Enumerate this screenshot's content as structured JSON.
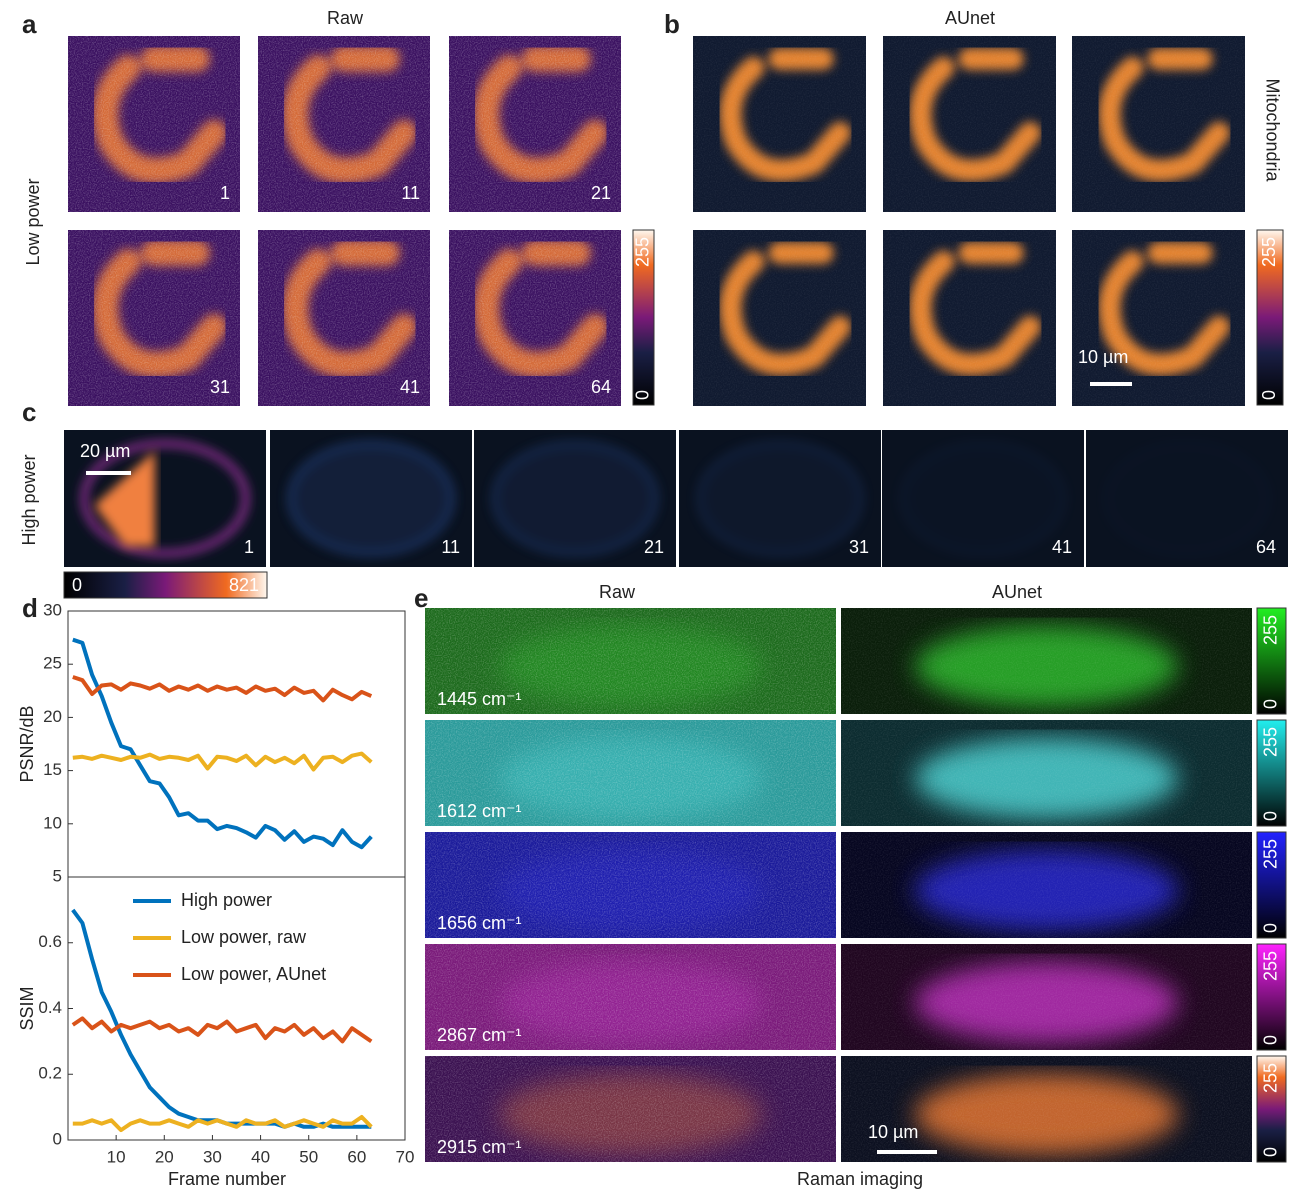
{
  "panel_labels": [
    "a",
    "b",
    "c",
    "d",
    "e"
  ],
  "panel_a": {
    "title": "Raw",
    "row_label": "Low power",
    "frames": [
      1,
      11,
      21,
      31,
      41,
      64
    ],
    "colorbar": {
      "ticks": [
        0,
        255
      ]
    }
  },
  "panel_b": {
    "title": "AUnet",
    "side_label": "Mitochondria",
    "scale_bar": "10 µm",
    "colorbar": {
      "ticks": [
        0,
        255
      ]
    }
  },
  "panel_c": {
    "row_label": "High power",
    "frames": [
      1,
      11,
      21,
      31,
      41,
      64
    ],
    "scale_bar": "20 µm",
    "colorbar": {
      "ticks": [
        0,
        821
      ]
    }
  },
  "panel_e": {
    "columns": [
      "Raw",
      "AUnet"
    ],
    "rows": [
      {
        "label": "1445 cm⁻¹",
        "colorbar_ticks": [
          0,
          255
        ]
      },
      {
        "label": "1612 cm⁻¹",
        "colorbar_ticks": [
          0,
          255
        ]
      },
      {
        "label": "1656 cm⁻¹",
        "colorbar_ticks": [
          0,
          255
        ]
      },
      {
        "label": "2867 cm⁻¹",
        "colorbar_ticks": [
          0,
          255
        ]
      },
      {
        "label": "2915 cm⁻¹",
        "colorbar_ticks": [
          0,
          255
        ]
      }
    ],
    "scale_bar": "10 µm",
    "x_label": "Raman imaging"
  },
  "chart_data": [
    {
      "type": "line",
      "y_label": "PSNR/dB",
      "xlim": [
        0,
        70
      ],
      "ylim": [
        5,
        30
      ],
      "yticks": [
        5,
        10,
        15,
        20,
        25,
        30
      ],
      "x": [
        1,
        3,
        5,
        7,
        9,
        11,
        13,
        15,
        17,
        19,
        21,
        23,
        25,
        27,
        29,
        31,
        33,
        35,
        37,
        39,
        41,
        43,
        45,
        47,
        49,
        51,
        53,
        55,
        57,
        59,
        61,
        63
      ],
      "series": [
        {
          "color": "#0072bd",
          "values": [
            27.3,
            27.0,
            24.0,
            22.0,
            19.5,
            17.3,
            17.0,
            15.5,
            14.0,
            13.8,
            12.5,
            10.8,
            11.0,
            10.3,
            10.3,
            9.5,
            9.8,
            9.6,
            9.2,
            8.7,
            9.8,
            9.4,
            8.5,
            9.3,
            8.3,
            8.8,
            8.6,
            8.0,
            9.4,
            8.3,
            7.8,
            8.8
          ]
        },
        {
          "color": "#edb120",
          "values": [
            16.2,
            16.3,
            16.1,
            16.4,
            16.2,
            16.0,
            16.3,
            16.2,
            16.5,
            16.1,
            16.3,
            16.2,
            16.0,
            16.4,
            15.2,
            16.3,
            16.2,
            15.9,
            16.4,
            15.5,
            16.3,
            15.8,
            16.2,
            15.7,
            16.4,
            15.1,
            16.2,
            16.3,
            15.8,
            16.4,
            16.6,
            15.8
          ]
        },
        {
          "color": "#d95319",
          "values": [
            23.8,
            23.5,
            22.2,
            23.0,
            23.1,
            22.6,
            23.2,
            23.0,
            22.7,
            23.1,
            22.5,
            22.9,
            22.6,
            23.0,
            22.5,
            22.9,
            22.6,
            22.8,
            22.3,
            22.9,
            22.5,
            22.7,
            22.1,
            22.8,
            22.3,
            22.5,
            21.6,
            22.6,
            22.1,
            21.7,
            22.4,
            22.0
          ]
        }
      ]
    },
    {
      "type": "line",
      "x_label": "Frame number",
      "y_label": "SSIM",
      "xlim": [
        0,
        70
      ],
      "ylim": [
        0,
        0.8
      ],
      "xticks": [
        10,
        20,
        30,
        40,
        50,
        60,
        70
      ],
      "yticks": [
        0,
        0.2,
        0.4,
        0.6
      ],
      "legend": "upper left",
      "x": [
        1,
        3,
        5,
        7,
        9,
        11,
        13,
        15,
        17,
        19,
        21,
        23,
        25,
        27,
        29,
        31,
        33,
        35,
        37,
        39,
        41,
        43,
        45,
        47,
        49,
        51,
        53,
        55,
        57,
        59,
        61,
        63
      ],
      "series": [
        {
          "name": "High power",
          "color": "#0072bd",
          "values": [
            0.7,
            0.66,
            0.55,
            0.45,
            0.39,
            0.32,
            0.26,
            0.21,
            0.16,
            0.13,
            0.1,
            0.08,
            0.07,
            0.06,
            0.06,
            0.06,
            0.05,
            0.05,
            0.05,
            0.05,
            0.05,
            0.05,
            0.04,
            0.05,
            0.04,
            0.04,
            0.05,
            0.04,
            0.04,
            0.04,
            0.04,
            0.04
          ]
        },
        {
          "name": "Low power, raw",
          "color": "#edb120",
          "values": [
            0.05,
            0.05,
            0.06,
            0.05,
            0.06,
            0.03,
            0.05,
            0.06,
            0.05,
            0.05,
            0.06,
            0.05,
            0.04,
            0.06,
            0.05,
            0.06,
            0.05,
            0.04,
            0.06,
            0.05,
            0.05,
            0.06,
            0.04,
            0.05,
            0.06,
            0.05,
            0.04,
            0.06,
            0.05,
            0.05,
            0.07,
            0.04
          ]
        },
        {
          "name": "Low power, AUnet",
          "color": "#d95319",
          "values": [
            0.35,
            0.37,
            0.34,
            0.36,
            0.33,
            0.35,
            0.34,
            0.35,
            0.36,
            0.34,
            0.35,
            0.33,
            0.34,
            0.32,
            0.35,
            0.34,
            0.36,
            0.33,
            0.34,
            0.35,
            0.31,
            0.34,
            0.33,
            0.35,
            0.32,
            0.34,
            0.31,
            0.33,
            0.3,
            0.34,
            0.32,
            0.3
          ]
        }
      ]
    }
  ]
}
